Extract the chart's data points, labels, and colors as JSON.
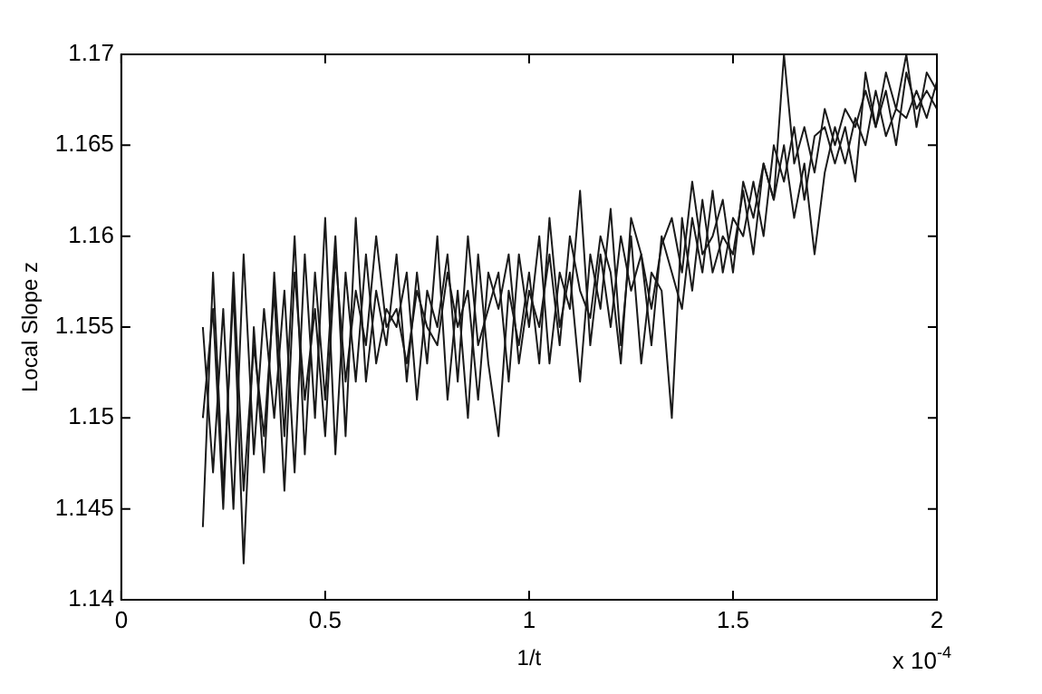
{
  "chart_data": {
    "type": "line",
    "xlabel": "1/t",
    "ylabel": "Local Slope z",
    "annotations": [
      "x 10$^{-4}$"
    ],
    "x": [
      0.2,
      0.225,
      0.25,
      0.275,
      0.3,
      0.325,
      0.35,
      0.375,
      0.4,
      0.425,
      0.45,
      0.475,
      0.5,
      0.525,
      0.55,
      0.575,
      0.6,
      0.625,
      0.65,
      0.675,
      0.7,
      0.725,
      0.75,
      0.775,
      0.8,
      0.825,
      0.85,
      0.875,
      0.9,
      0.925,
      0.95,
      0.975,
      1.0,
      1.025,
      1.05,
      1.075,
      1.1,
      1.125,
      1.15,
      1.175,
      1.2,
      1.225,
      1.25,
      1.275,
      1.3,
      1.325,
      1.35,
      1.375,
      1.4,
      1.425,
      1.45,
      1.475,
      1.5,
      1.525,
      1.55,
      1.575,
      1.6,
      1.625,
      1.65,
      1.675,
      1.7,
      1.725,
      1.75,
      1.775,
      1.8,
      1.825,
      1.85,
      1.875,
      1.9,
      1.925,
      1.95,
      1.975,
      2.0
    ],
    "series": [
      {
        "color": "#1a1a1a",
        "values": [
          1.144,
          1.158,
          1.146,
          1.157,
          1.142,
          1.155,
          1.147,
          1.158,
          1.149,
          1.16,
          1.148,
          1.158,
          1.151,
          1.16,
          1.149,
          1.161,
          1.152,
          1.157,
          1.154,
          1.159,
          1.152,
          1.158,
          1.153,
          1.16,
          1.151,
          1.157,
          1.15,
          1.159,
          1.153,
          1.149,
          1.157,
          1.154,
          1.158,
          1.153,
          1.161,
          1.155,
          1.158,
          1.152,
          1.159,
          1.156,
          1.1615,
          1.154,
          1.16,
          1.153,
          1.158,
          1.157,
          1.15,
          1.161,
          1.157,
          1.162,
          1.158,
          1.16,
          1.159,
          1.1625,
          1.159,
          1.164,
          1.162,
          1.17,
          1.164,
          1.166,
          1.1635,
          1.167,
          1.165,
          1.167,
          1.166,
          1.168,
          1.166,
          1.169,
          1.167,
          1.17,
          1.166,
          1.169,
          1.168
        ]
      },
      {
        "color": "#1a1a1a",
        "values": [
          1.155,
          1.147,
          1.156,
          1.145,
          1.159,
          1.148,
          1.156,
          1.15,
          1.157,
          1.147,
          1.159,
          1.15,
          1.161,
          1.148,
          1.158,
          1.152,
          1.159,
          1.153,
          1.156,
          1.155,
          1.158,
          1.151,
          1.157,
          1.155,
          1.159,
          1.152,
          1.16,
          1.154,
          1.156,
          1.158,
          1.152,
          1.159,
          1.155,
          1.16,
          1.153,
          1.158,
          1.156,
          1.1625,
          1.154,
          1.159,
          1.155,
          1.16,
          1.157,
          1.159,
          1.154,
          1.16,
          1.158,
          1.156,
          1.161,
          1.158,
          1.1625,
          1.158,
          1.161,
          1.16,
          1.163,
          1.16,
          1.165,
          1.163,
          1.166,
          1.162,
          1.1655,
          1.166,
          1.164,
          1.166,
          1.163,
          1.169,
          1.166,
          1.168,
          1.165,
          1.169,
          1.167,
          1.168,
          1.167
        ]
      },
      {
        "color": "#1a1a1a",
        "values": [
          1.15,
          1.156,
          1.145,
          1.158,
          1.146,
          1.154,
          1.149,
          1.157,
          1.146,
          1.158,
          1.151,
          1.156,
          1.149,
          1.159,
          1.152,
          1.157,
          1.154,
          1.16,
          1.155,
          1.156,
          1.153,
          1.157,
          1.155,
          1.154,
          1.158,
          1.155,
          1.157,
          1.151,
          1.158,
          1.156,
          1.159,
          1.153,
          1.157,
          1.155,
          1.159,
          1.154,
          1.16,
          1.157,
          1.1555,
          1.16,
          1.158,
          1.153,
          1.161,
          1.159,
          1.156,
          1.1595,
          1.161,
          1.158,
          1.163,
          1.159,
          1.16,
          1.162,
          1.158,
          1.163,
          1.161,
          1.164,
          1.162,
          1.165,
          1.161,
          1.164,
          1.159,
          1.1635,
          1.166,
          1.164,
          1.1665,
          1.165,
          1.168,
          1.1655,
          1.167,
          1.1665,
          1.168,
          1.1665,
          1.1685
        ]
      }
    ],
    "xlim": [
      0,
      2
    ],
    "xticks": [
      0,
      0.5,
      1,
      1.5,
      2
    ],
    "ylim": [
      1.14,
      1.17
    ],
    "yticks": [
      1.14,
      1.145,
      1.15,
      1.155,
      1.16,
      1.165,
      1.17
    ],
    "grid": false,
    "legend": false,
    "marker": "none",
    "line_style": "solid"
  }
}
